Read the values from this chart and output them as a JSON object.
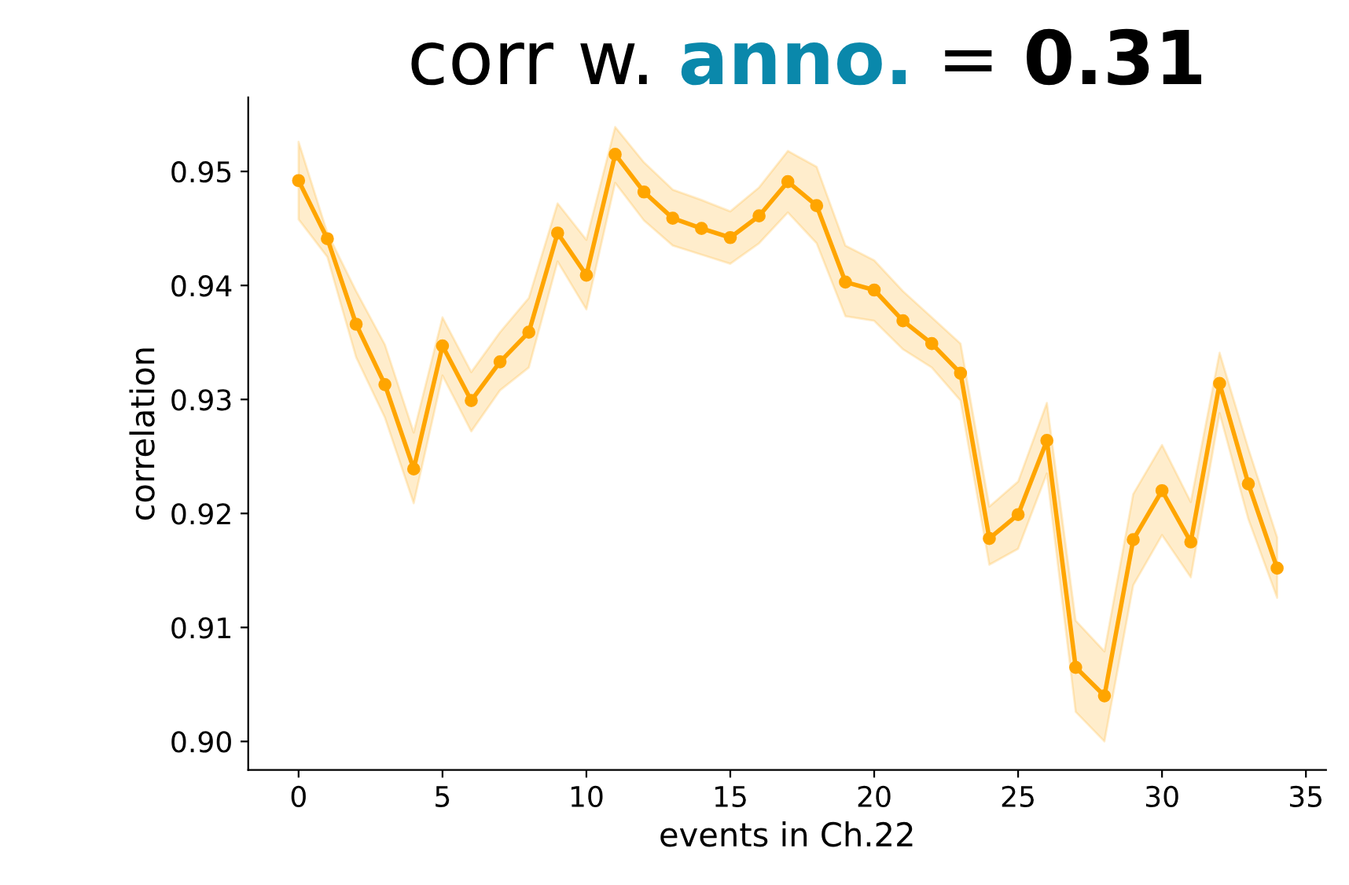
{
  "chart_data": {
    "type": "line",
    "title": "corr w. anno. = 0.31",
    "xlabel": "events in Ch.22",
    "ylabel": "correlation",
    "x": [
      0,
      1,
      2,
      3,
      4,
      5,
      6,
      7,
      8,
      9,
      10,
      11,
      12,
      13,
      14,
      15,
      16,
      17,
      18,
      19,
      20,
      21,
      22,
      23,
      24,
      25,
      26,
      27,
      28,
      29,
      30,
      31,
      32,
      33,
      34
    ],
    "series": [
      {
        "color": "#ffa500",
        "values": [
          0.9492,
          0.9441,
          0.9366,
          0.9313,
          0.9239,
          0.9347,
          0.9299,
          0.9333,
          0.9359,
          0.9446,
          0.9409,
          0.9515,
          0.9482,
          0.9459,
          0.945,
          0.9442,
          0.9461,
          0.9491,
          0.947,
          0.9403,
          0.9396,
          0.9369,
          0.9349,
          0.9323,
          0.9178,
          0.9199,
          0.9264,
          0.9065,
          0.904,
          0.9177,
          0.922,
          0.9175,
          0.9314,
          0.9226,
          0.9152
        ],
        "lower": [
          0.9458,
          0.9425,
          0.9337,
          0.9284,
          0.9209,
          0.9321,
          0.9272,
          0.9308,
          0.9328,
          0.9421,
          0.9379,
          0.949,
          0.9457,
          0.9435,
          0.9427,
          0.9419,
          0.9437,
          0.9464,
          0.9437,
          0.9373,
          0.9369,
          0.9344,
          0.9328,
          0.9299,
          0.9155,
          0.9169,
          0.9235,
          0.9026,
          0.9,
          0.9137,
          0.9181,
          0.9144,
          0.9288,
          0.9195,
          0.9126
        ],
        "upper": [
          0.9526,
          0.9446,
          0.9395,
          0.9348,
          0.9271,
          0.9372,
          0.9324,
          0.9359,
          0.9389,
          0.9472,
          0.944,
          0.9539,
          0.9508,
          0.9484,
          0.9475,
          0.9465,
          0.9486,
          0.9518,
          0.9504,
          0.9435,
          0.9422,
          0.9395,
          0.9372,
          0.9349,
          0.9206,
          0.9228,
          0.9297,
          0.9106,
          0.9079,
          0.9217,
          0.926,
          0.921,
          0.9341,
          0.9257,
          0.9179
        ]
      }
    ],
    "xlim": [
      -1.75,
      35.7
    ],
    "ylim": [
      0.8975,
      0.9565
    ],
    "xticks": [
      0,
      5,
      10,
      15,
      20,
      25,
      30,
      35
    ],
    "yticks": [
      {
        "value": 0.9,
        "label": "0.90"
      },
      0.91,
      0.92,
      0.93,
      0.94,
      0.95
    ],
    "grid": false,
    "marker": "circle",
    "line_style": "solid"
  }
}
